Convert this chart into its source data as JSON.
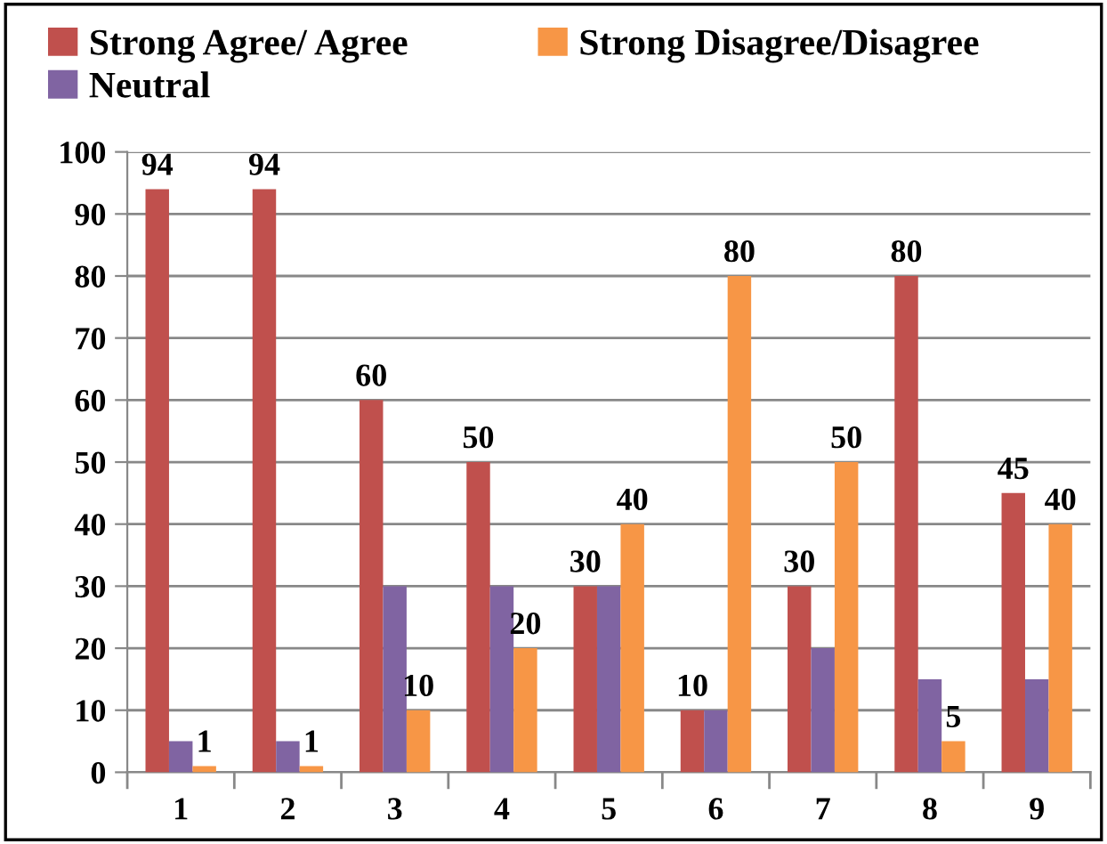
{
  "chart_data": {
    "type": "bar",
    "categories": [
      "1",
      "2",
      "3",
      "4",
      "5",
      "6",
      "7",
      "8",
      "9"
    ],
    "series": [
      {
        "name": "Strong Agree/ Agree",
        "color": "#c0504d",
        "values": [
          94,
          94,
          60,
          50,
          30,
          10,
          30,
          80,
          45
        ],
        "value_labels": [
          "94",
          "94",
          "60",
          "50",
          "30",
          "10",
          "30",
          "80",
          "45"
        ]
      },
      {
        "name": "Neutral",
        "color": "#8064a2",
        "values": [
          5,
          5,
          30,
          30,
          30,
          10,
          20,
          15,
          15
        ]
      },
      {
        "name": "Strong Disagree/Disagree",
        "color": "#f79646",
        "values": [
          1,
          1,
          10,
          20,
          40,
          80,
          50,
          5,
          40
        ],
        "value_labels": [
          "1",
          "1",
          "10",
          "20",
          "40",
          "80",
          "50",
          "5",
          "40"
        ]
      }
    ],
    "ylim": [
      0,
      100
    ],
    "yticks": [
      0,
      10,
      20,
      30,
      40,
      50,
      60,
      70,
      80,
      90,
      100
    ],
    "grid": "y",
    "legend": "top"
  }
}
